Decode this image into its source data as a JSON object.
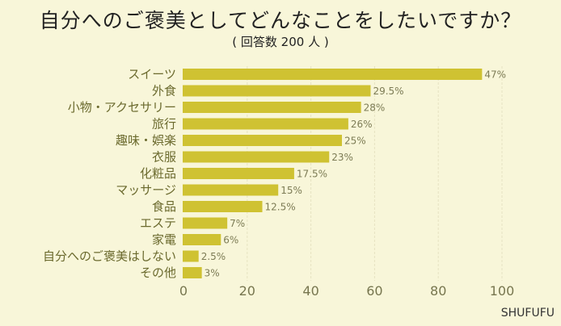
{
  "chart_data": {
    "type": "bar",
    "orientation": "horizontal",
    "title": "自分へのご褒美としてどんなことをしたいですか？",
    "subtitle": "( 回答数 200 人 )",
    "categories": [
      "スイーツ",
      "外食",
      "小物・アクセサリー",
      "旅行",
      "趣味・娯楽",
      "衣服",
      "化粧品",
      "マッサージ",
      "食品",
      "エステ",
      "家電",
      "自分へのご褒美はしない",
      "その他"
    ],
    "values": [
      47,
      29.5,
      28,
      26,
      25,
      23,
      17.5,
      15,
      12.5,
      7,
      6,
      2.5,
      3
    ],
    "value_labels": [
      "47%",
      "29.5%",
      "28%",
      "26%",
      "25%",
      "23%",
      "17.5%",
      "15%",
      "12.5%",
      "7%",
      "6%",
      "2.5%",
      "3%"
    ],
    "xlabel": "",
    "ylabel": "",
    "xlim": [
      0,
      100
    ],
    "xticks": [
      "0",
      "20",
      "40",
      "60",
      "80",
      "100"
    ],
    "grid": true,
    "bar_color": "#cfc232",
    "background": "#f8f6d9"
  },
  "brand": "SHUFUFU"
}
